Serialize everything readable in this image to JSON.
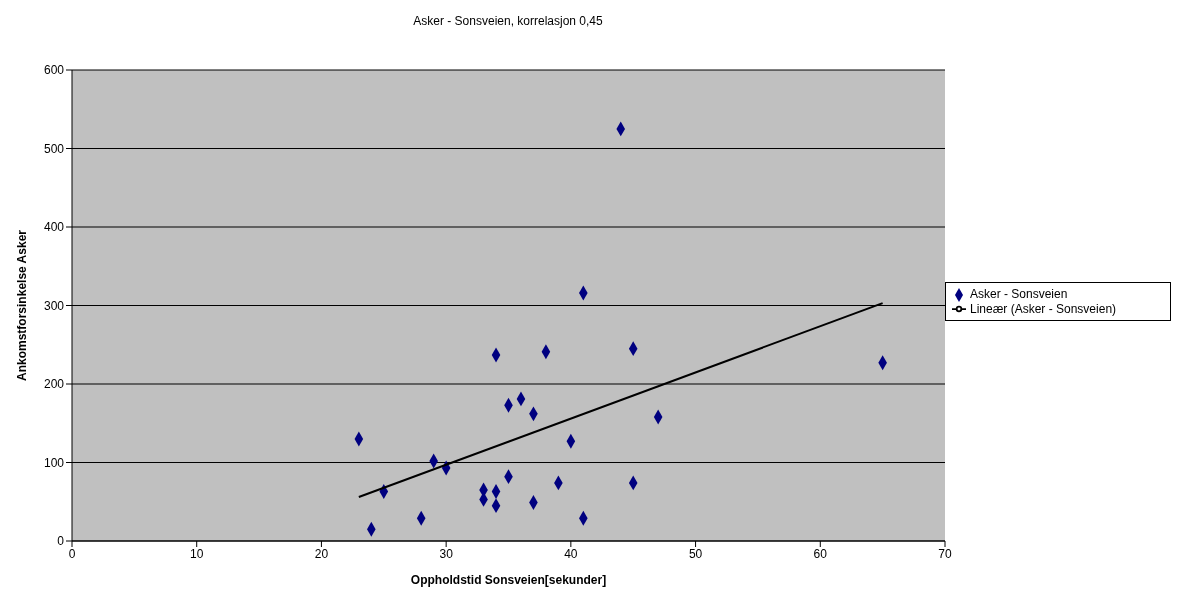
{
  "chart_data": {
    "type": "scatter",
    "title": "Asker - Sonsveien, korrelasjon 0,45",
    "xlabel": "Oppholdstid Sonsveien[sekunder]",
    "ylabel": "Ankomstforsinkelse Asker",
    "xlim": [
      0,
      70
    ],
    "xticks": [
      0,
      10,
      20,
      30,
      40,
      50,
      60,
      70
    ],
    "ylim": [
      0,
      600
    ],
    "yticks": [
      0,
      100,
      200,
      300,
      400,
      500,
      600
    ],
    "grid": "y",
    "legend": "right",
    "marker": "diamond",
    "series": [
      {
        "name": "Asker - Sonsveien",
        "color": "#000080",
        "x": [
          23,
          24,
          25,
          28,
          29,
          30,
          33,
          33,
          34,
          34,
          34,
          35,
          35,
          36,
          37,
          37,
          38,
          39,
          40,
          41,
          41,
          44,
          45,
          45,
          47,
          65
        ],
        "values": [
          130,
          15,
          63,
          29,
          102,
          93,
          65,
          53,
          237,
          63,
          45,
          173,
          82,
          181,
          162,
          49,
          241,
          74,
          127,
          316,
          29,
          525,
          245,
          74,
          158,
          227
        ]
      },
      {
        "name": "Lineær (Asker - Sonsveien)",
        "type": "line",
        "color": "#000000",
        "marker": "none",
        "x": [
          23,
          65
        ],
        "values": [
          56,
          303
        ]
      }
    ]
  }
}
